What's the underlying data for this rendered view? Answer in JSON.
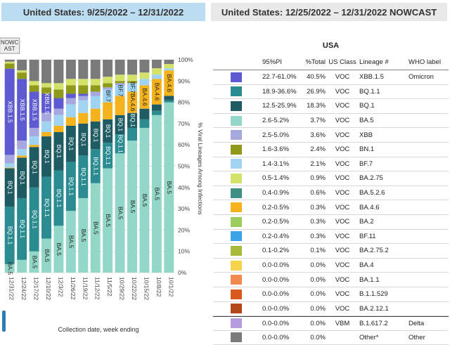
{
  "headers": {
    "left": "United States: 9/25/2022 – 12/31/2022",
    "right": "United States: 12/25/2022 – 12/31/2022 NOWCAST"
  },
  "table": {
    "title": "USA",
    "columns": [
      "WHO label",
      "Lineage #",
      "US Class",
      "%Total",
      "95%PI"
    ],
    "rows": [
      {
        "who": "Omicron",
        "lineage": "XBB.1.5",
        "cls": "VOC",
        "total": "40.5%",
        "pi": "22.7-61.0%",
        "color": "#5e5bd2"
      },
      {
        "who": "",
        "lineage": "BQ.1.1",
        "cls": "VOC",
        "total": "26.9%",
        "pi": "18.9-36.6%",
        "color": "#2a8b91"
      },
      {
        "who": "",
        "lineage": "BQ.1",
        "cls": "VOC",
        "total": "18.3%",
        "pi": "12.5-25.9%",
        "color": "#1e5b62"
      },
      {
        "who": "",
        "lineage": "BA.5",
        "cls": "VOC",
        "total": "3.7%",
        "pi": "2.6-5.2%",
        "color": "#93d7c9"
      },
      {
        "who": "",
        "lineage": "XBB",
        "cls": "VOC",
        "total": "3.6%",
        "pi": "2.5-5.0%",
        "color": "#a6a8df"
      },
      {
        "who": "",
        "lineage": "BN.1",
        "cls": "VOC",
        "total": "2.4%",
        "pi": "1.6-3.6%",
        "color": "#8f9a1b"
      },
      {
        "who": "",
        "lineage": "BF.7",
        "cls": "VOC",
        "total": "2.1%",
        "pi": "1.4-3.1%",
        "color": "#9ed4f2"
      },
      {
        "who": "",
        "lineage": "BA.2.75",
        "cls": "VOC",
        "total": "0.9%",
        "pi": "0.5-1.4%",
        "color": "#d4e26a"
      },
      {
        "who": "",
        "lineage": "BA.5.2.6",
        "cls": "VOC",
        "total": "0.6%",
        "pi": "0.4-0.9%",
        "color": "#3f8f84"
      },
      {
        "who": "",
        "lineage": "BA.4.6",
        "cls": "VOC",
        "total": "0.3%",
        "pi": "0.2-0.5%",
        "color": "#f4b21d"
      },
      {
        "who": "",
        "lineage": "BA.2",
        "cls": "VOC",
        "total": "0.3%",
        "pi": "0.2-0.5%",
        "color": "#9ccc5b"
      },
      {
        "who": "",
        "lineage": "BF.11",
        "cls": "VOC",
        "total": "0.3%",
        "pi": "0.2-0.4%",
        "color": "#3aa3e6"
      },
      {
        "who": "",
        "lineage": "BA.2.75.2",
        "cls": "VOC",
        "total": "0.1%",
        "pi": "0.1-0.2%",
        "color": "#a9b93a"
      },
      {
        "who": "",
        "lineage": "BA.4",
        "cls": "VOC",
        "total": "0.0%",
        "pi": "0.0-0.0%",
        "color": "#f7d44b"
      },
      {
        "who": "",
        "lineage": "BA.1.1",
        "cls": "VOC",
        "total": "0.0%",
        "pi": "0.0-0.0%",
        "color": "#f08a4e"
      },
      {
        "who": "",
        "lineage": "B.1.1.529",
        "cls": "VOC",
        "total": "0.0%",
        "pi": "0.0-0.0%",
        "color": "#d8591b"
      },
      {
        "who": "",
        "lineage": "BA.2.12.1",
        "cls": "VOC",
        "total": "0.0%",
        "pi": "0.0-0.0%",
        "color": "#b4471a"
      },
      {
        "who": "Delta",
        "lineage": "B.1.617.2",
        "cls": "VBM",
        "total": "0.0%",
        "pi": "0.0-0.0%",
        "color": "#b59be0"
      },
      {
        "who": "Other",
        "lineage": "Other*",
        "cls": "",
        "total": "0.0%",
        "pi": "0.0-0.0%",
        "color": "#7a7a7a"
      }
    ]
  },
  "chart_data": {
    "type": "bar",
    "stacked": true,
    "ylabel": "% Viral Lineages Among Infections",
    "xlabel": "Collection date, week ending",
    "ylim": [
      0,
      100
    ],
    "yticks": [
      "0%",
      "10%",
      "20%",
      "30%",
      "40%",
      "50%",
      "60%",
      "70%",
      "80%",
      "90%",
      "100%"
    ],
    "nowcast_label": "NOWCAST",
    "categories": [
      "10/1/22",
      "10/8/22",
      "10/15/22",
      "10/22/22",
      "10/29/22",
      "11/5/22",
      "11/12/22",
      "11/19/22",
      "11/26/22",
      "12/3/22",
      "12/10/22",
      "12/17/22",
      "12/24/22",
      "12/31/22"
    ],
    "series": [
      {
        "name": "BA.5",
        "color": "#93d7c9",
        "values": [
          80,
          74,
          68,
          62,
          56,
          49,
          42,
          35,
          29,
          22,
          16,
          10,
          6,
          4
        ]
      },
      {
        "name": "BQ.1.1",
        "color": "#2a8b91",
        "values": [
          1,
          2,
          4,
          6,
          9,
          12,
          16,
          20,
          23,
          26,
          29,
          30,
          29,
          27
        ]
      },
      {
        "name": "BQ.1",
        "color": "#1e5b62",
        "values": [
          2,
          3,
          5,
          7,
          9,
          11,
          13,
          15,
          17,
          18,
          19,
          19,
          19,
          18
        ]
      },
      {
        "name": "BA.4.6",
        "color": "#f4b21d",
        "values": [
          12,
          12,
          11,
          10,
          9,
          8,
          6,
          5,
          4,
          3,
          2,
          1,
          1,
          0.3
        ]
      },
      {
        "name": "BF.7",
        "color": "#9ed4f2",
        "values": [
          1,
          2,
          3,
          4,
          5,
          6,
          6,
          6,
          6,
          5,
          5,
          4,
          3,
          2
        ]
      },
      {
        "name": "XBB",
        "color": "#a6a8df",
        "values": [
          0,
          0,
          0,
          0,
          1,
          1,
          2,
          2,
          3,
          3,
          4,
          4,
          4,
          4
        ]
      },
      {
        "name": "XBB.1.5",
        "color": "#5e5bd2",
        "values": [
          0,
          0,
          0,
          0,
          0,
          0,
          0,
          1,
          2,
          5,
          9,
          17,
          29,
          40.5
        ]
      },
      {
        "name": "BN.1",
        "color": "#8f9a1b",
        "values": [
          0,
          0,
          0,
          1,
          1,
          2,
          3,
          4,
          4,
          4,
          3,
          3,
          3,
          2.4
        ]
      },
      {
        "name": "BA.2.75",
        "color": "#d4e26a",
        "values": [
          2,
          3,
          3,
          3,
          3,
          3,
          3,
          3,
          3,
          3,
          2,
          2,
          1,
          0.9
        ]
      },
      {
        "name": "Other",
        "color": "#7a7a7a",
        "values": [
          2,
          4,
          6,
          7,
          7,
          8,
          9,
          9,
          9,
          11,
          11,
          10,
          5,
          1
        ]
      }
    ],
    "bar_labels": [
      [
        "BA.5",
        "BA.4.6"
      ],
      [
        "BA.5",
        "BA.4.6"
      ],
      [
        "BA.5",
        "BF.7",
        "BA.4.6"
      ],
      [
        "BA.5",
        "BQ.1",
        "BF.7",
        "BA.4.6"
      ],
      [
        "BA.5",
        "BQ.1.1",
        "BQ.1",
        "BF.7"
      ],
      [
        "BA.5",
        "BQ.1.1",
        "BQ.1",
        "BF.7"
      ],
      [
        "BA.5",
        "BQ.1.1",
        "BQ.1"
      ],
      [
        "BA.5",
        "BQ.1.1",
        "BQ.1"
      ],
      [
        "BA.5",
        "BQ.1.1",
        "BQ.1"
      ],
      [
        "BA.5",
        "BQ.1.1",
        "BQ.1"
      ],
      [
        "BA.5",
        "BQ.1.1",
        "BQ.1",
        "XBB.1.5"
      ],
      [
        "BA.5",
        "BQ.1.1",
        "BQ.1",
        "XBB.1.5"
      ],
      [
        "BQ.1.1",
        "BQ.1",
        "XBB.1.5"
      ],
      [
        "BA.5",
        "BQ.1.1",
        "BQ.1",
        "XBB.1.5"
      ]
    ]
  }
}
